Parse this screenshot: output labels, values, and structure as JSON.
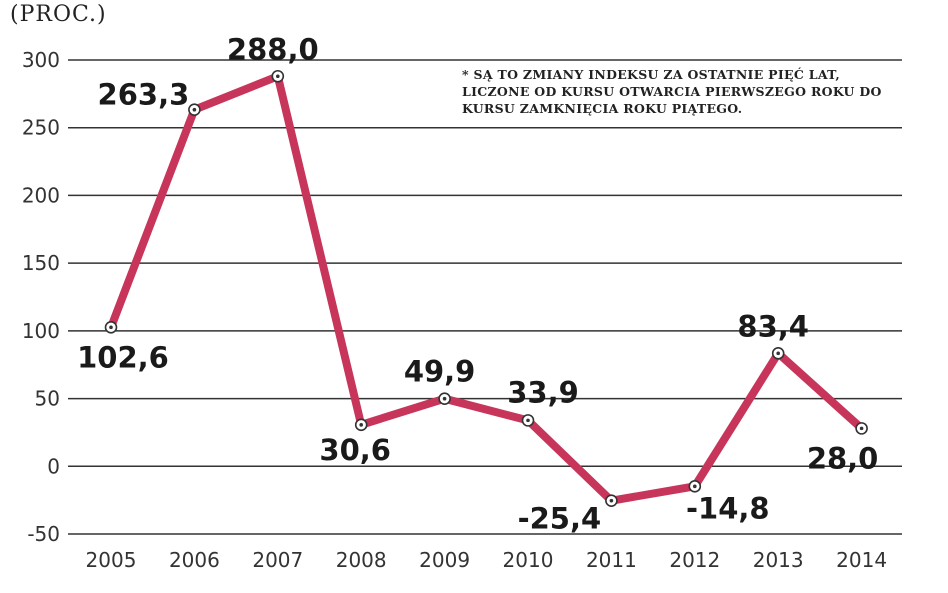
{
  "chart": {
    "unit_label": "(PROC.)",
    "note": "* SĄ TO ZMIANY INDEKSU ZA OSTATNIE PIĘĆ LAT, LICZONE OD KURSU OTWARCIA PIERWSZEGO ROKU DO KURSU ZAMKNIĘCIA ROKU PIĄTEGO."
  },
  "colors": {
    "line": "#c8355a",
    "grid": "#333333",
    "marker_fill": "#ffffff",
    "marker_stroke": "#333333"
  },
  "chart_data": {
    "type": "line",
    "title": "",
    "xlabel": "",
    "ylabel": "(PROC.)",
    "categories": [
      "2005",
      "2006",
      "2007",
      "2008",
      "2009",
      "2010",
      "2011",
      "2012",
      "2013",
      "2014"
    ],
    "series": [
      {
        "values": [
          102.6,
          263.3,
          288.0,
          30.6,
          49.9,
          33.9,
          -25.4,
          -14.8,
          83.4,
          28.0
        ]
      }
    ],
    "data_labels": [
      "102,6",
      "263,3",
      "288,0",
      "30,6",
      "49,9",
      "33,9",
      "-25,4",
      "-14,8",
      "83,4",
      "28,0"
    ],
    "yticks": [
      300,
      250,
      200,
      150,
      100,
      50,
      0,
      -50
    ],
    "ylim": [
      -50,
      300
    ],
    "grid": true
  }
}
